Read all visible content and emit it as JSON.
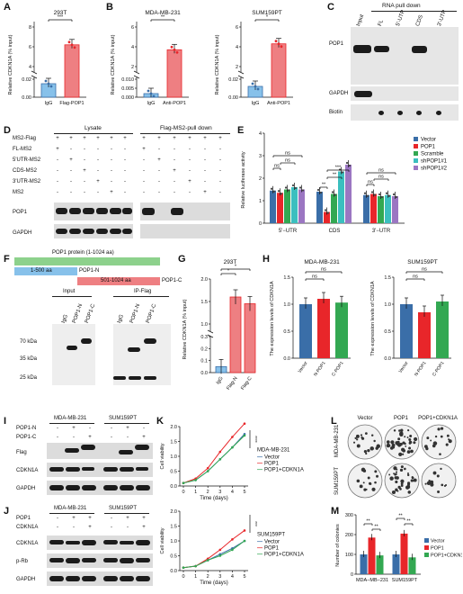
{
  "panels": {
    "A": {
      "letter": "A",
      "title": "293T",
      "ylabel": "Relative CDKN1A (% input)",
      "ticks_top": [
        "8",
        "6",
        "4"
      ],
      "ticks_bottom": [
        "0.02",
        "0.00"
      ],
      "categories": [
        "IgG",
        "Flag-POP1"
      ],
      "sig": "***"
    },
    "B1": {
      "letter": "B",
      "title": "MDA-MB-231",
      "ylabel": "Relative CDKN1A (% input)",
      "ticks_top": [
        "6",
        "4",
        "2"
      ],
      "ticks_bottom": [
        "0.010",
        "0.005",
        "0.000"
      ],
      "categories": [
        "IgG",
        "Anti-POP1"
      ],
      "sig": "**"
    },
    "B2": {
      "title": "SUM159PT",
      "ylabel": "Relative CDKN1A (% input)",
      "ticks_top": [
        "6",
        "4",
        "2"
      ],
      "ticks_bottom": [
        "0.02",
        "0.00"
      ],
      "categories": [
        "IgG",
        "Anti-POP1"
      ],
      "sig": "*"
    },
    "C": {
      "letter": "C",
      "header": "RNA pull down",
      "lanes": [
        "Input",
        "FL",
        "5'-UTR",
        "CDS",
        "3'-UTR"
      ],
      "rows": [
        "POP1",
        "GAPDH",
        "Biotin"
      ]
    },
    "D": {
      "letter": "D",
      "group1": "Lysate",
      "group2": "Flag-MS2-pull down",
      "rows": [
        {
          "label": "MS2-Flag",
          "marks": [
            "+",
            "+",
            "+",
            "+",
            "+",
            "+",
            "+",
            "+",
            "+",
            "+",
            "+",
            "+"
          ]
        },
        {
          "label": "FL-MS2",
          "marks": [
            "+",
            "-",
            "-",
            "-",
            "-",
            "-",
            "+",
            "-",
            "-",
            "-",
            "-",
            "-"
          ]
        },
        {
          "label": "5'UTR-MS2",
          "marks": [
            "-",
            "+",
            "-",
            "-",
            "-",
            "-",
            "-",
            "+",
            "-",
            "-",
            "-",
            "-"
          ]
        },
        {
          "label": "CDS-MS2",
          "marks": [
            "-",
            "-",
            "+",
            "-",
            "-",
            "-",
            "-",
            "-",
            "+",
            "-",
            "-",
            "-"
          ]
        },
        {
          "label": "3'UTR-MS2",
          "marks": [
            "-",
            "-",
            "-",
            "+",
            "-",
            "-",
            "-",
            "-",
            "-",
            "+",
            "-",
            "-"
          ]
        },
        {
          "label": "MS2",
          "marks": [
            "-",
            "-",
            "-",
            "-",
            "+",
            "-",
            "-",
            "-",
            "-",
            "-",
            "+",
            "-"
          ]
        }
      ],
      "blots": [
        "POP1",
        "GAPDH"
      ]
    },
    "E": {
      "letter": "E",
      "ylabel": "Relative luciferase activity",
      "ticks": [
        "4",
        "3",
        "2",
        "1",
        "0"
      ],
      "groups": [
        "5'−UTR",
        "CDS",
        "3'−UTR"
      ],
      "legend": [
        "Vector",
        "POP1",
        "Scramble",
        "shPOP1#1",
        "shPOP1#2"
      ],
      "sigs": [
        "ns",
        "ns",
        "ns",
        "**",
        "**",
        "***",
        "ns",
        "ns",
        "ns"
      ]
    },
    "F": {
      "letter": "F",
      "protein": "POP1 protein (1-1024 aa)",
      "fragN": "1-500 aa",
      "fragNlabel": "POP1-N",
      "fragC": "501-1024 aa",
      "fragClabel": "POP1-C",
      "blot1": "Input",
      "blot2": "IP-Flag",
      "lanes": [
        "IgG",
        "POP1-N",
        "POP1-C"
      ],
      "markers": [
        "70 kDa",
        "35 kDa",
        "25 kDa"
      ]
    },
    "G": {
      "letter": "G",
      "title": "293T",
      "ylabel": "Relative CDKN1A (% input)",
      "ticks_top": [
        "2.0",
        "1.5",
        "1.0"
      ],
      "ticks_bottom": [
        "0.3",
        "0.2",
        "0.1",
        "0.0"
      ],
      "categories": [
        "IgG",
        "Flag-N",
        "Flag-C"
      ],
      "sigs": [
        "*",
        "*"
      ]
    },
    "H": {
      "letter": "H",
      "ylabel": "The expression levels of CDKN1A",
      "ticks": [
        "1.5",
        "1.0",
        "0.5",
        "0.0"
      ],
      "left_title": "MDA-MB-231",
      "right_title": "SUM159PT",
      "categories": [
        "Vector",
        "N-POP1",
        "C-POP1"
      ],
      "sigs": [
        "ns",
        "ns",
        "ns"
      ]
    },
    "I": {
      "letter": "I",
      "cells": [
        "MDA-MB-231",
        "SUM159PT"
      ],
      "rows": [
        {
          "label": "POP1-N",
          "marks": [
            "-",
            "+",
            "-",
            "-",
            "+",
            "-"
          ]
        },
        {
          "label": "POP1-C",
          "marks": [
            "-",
            "-",
            "+",
            "-",
            "-",
            "+"
          ]
        }
      ],
      "blots": [
        "Flag",
        "CDKN1A",
        "GAPDH"
      ]
    },
    "J": {
      "letter": "J",
      "cells": [
        "MDA-MB-231",
        "SUM159PT"
      ],
      "rows": [
        {
          "label": "POP1",
          "marks": [
            "-",
            "+",
            "+",
            "-",
            "+",
            "+"
          ]
        },
        {
          "label": "CDKN1A",
          "marks": [
            "-",
            "-",
            "+",
            "-",
            "-",
            "+"
          ]
        }
      ],
      "blots": [
        "CDKN1A",
        "p-Rb",
        "GAPDH"
      ]
    },
    "K": {
      "letter": "K",
      "ylabel": "Cell viability",
      "xlabel": "Time (days)",
      "ticks_y": [
        "2.0",
        "1.5",
        "1.0",
        "0.5",
        "0.0"
      ],
      "ticks_x": [
        "0",
        "1",
        "2",
        "3",
        "4",
        "5"
      ],
      "top_title": "MDA-MB-231",
      "bottom_title": "SUM159PT",
      "legend": [
        "Vector",
        "POP1",
        "POP1+CDKN1A"
      ],
      "sigs": [
        "****",
        "***"
      ]
    },
    "L": {
      "letter": "L",
      "columns": [
        "Vector",
        "POP1",
        "POP1+CDKN1A"
      ],
      "rows": [
        "MDA-MB-231",
        "SUM159PT"
      ]
    },
    "M": {
      "letter": "M",
      "ylabel": "Number of colonies",
      "ticks": [
        "300",
        "200",
        "100",
        "0"
      ],
      "groups": [
        "MDA−MB−231",
        "SUM159PT"
      ],
      "legend": [
        "Vector",
        "POP1",
        "POP1+CDKN1A"
      ],
      "sigs": [
        "**",
        "**",
        "**",
        "**"
      ]
    }
  },
  "colors": {
    "blue": "#3a6ea8",
    "red": "#e8262a",
    "green": "#33a852",
    "teal": "#3bbfbf",
    "purple": "#9b76c2",
    "lightblue": "#87c1ea",
    "lightred": "#ee7f82",
    "lightgreen": "#8dd18c"
  },
  "chart_data": [
    {
      "type": "bar",
      "panel": "A",
      "title": "293T",
      "ylabel": "Relative CDKN1A (% input)",
      "categories": [
        "IgG",
        "Flag-POP1"
      ],
      "values": [
        0.015,
        6.2
      ]
    },
    {
      "type": "bar",
      "panel": "B",
      "title": "MDA-MB-231",
      "ylabel": "Relative CDKN1A (% input)",
      "categories": [
        "IgG",
        "Anti-POP1"
      ],
      "values": [
        0.002,
        3.7
      ]
    },
    {
      "type": "bar",
      "panel": "B",
      "title": "SUM159PT",
      "ylabel": "Relative CDKN1A (% input)",
      "categories": [
        "IgG",
        "Anti-POP1"
      ],
      "values": [
        0.012,
        4.3
      ]
    },
    {
      "type": "bar",
      "panel": "E",
      "ylabel": "Relative luciferase activity",
      "categories": [
        "5'−UTR",
        "CDS",
        "3'−UTR"
      ],
      "series": [
        {
          "name": "Vector",
          "values": [
            1.45,
            1.4,
            1.25
          ]
        },
        {
          "name": "POP1",
          "values": [
            1.35,
            0.5,
            1.3
          ]
        },
        {
          "name": "Scramble",
          "values": [
            1.5,
            1.3,
            1.2
          ]
        },
        {
          "name": "shPOP1#1",
          "values": [
            1.6,
            2.3,
            1.25
          ]
        },
        {
          "name": "shPOP1#2",
          "values": [
            1.5,
            2.6,
            1.2
          ]
        }
      ]
    },
    {
      "type": "bar",
      "panel": "G",
      "title": "293T",
      "ylabel": "Relative CDKN1A (% input)",
      "categories": [
        "IgG",
        "Flag-N",
        "Flag-C"
      ],
      "values": [
        0.05,
        1.6,
        1.45
      ]
    },
    {
      "type": "bar",
      "panel": "H",
      "title": "MDA-MB-231",
      "ylabel": "The expression levels of CDKN1A",
      "categories": [
        "Vector",
        "N-POP1",
        "C-POP1"
      ],
      "values": [
        1.0,
        1.1,
        1.03
      ]
    },
    {
      "type": "bar",
      "panel": "H",
      "title": "SUM159PT",
      "ylabel": "The expression levels of CDKN1A",
      "categories": [
        "Vector",
        "N-POP1",
        "C-POP1"
      ],
      "values": [
        1.0,
        0.85,
        1.05
      ]
    },
    {
      "type": "line",
      "panel": "K",
      "title": "MDA-MB-231",
      "xlabel": "Time (days)",
      "ylabel": "Cell viability",
      "x": [
        0,
        1,
        2,
        3,
        4,
        5
      ],
      "series": [
        {
          "name": "Vector",
          "values": [
            0.1,
            0.2,
            0.5,
            0.9,
            1.3,
            1.75
          ]
        },
        {
          "name": "POP1",
          "values": [
            0.1,
            0.25,
            0.6,
            1.15,
            1.65,
            2.1
          ]
        },
        {
          "name": "POP1+CDKN1A",
          "values": [
            0.1,
            0.2,
            0.5,
            0.9,
            1.3,
            1.7
          ]
        }
      ]
    },
    {
      "type": "line",
      "panel": "K",
      "title": "SUM159PT",
      "xlabel": "Time (days)",
      "ylabel": "Cell viability",
      "x": [
        0,
        1,
        2,
        3,
        4,
        5
      ],
      "series": [
        {
          "name": "Vector",
          "values": [
            0.1,
            0.15,
            0.35,
            0.55,
            0.75,
            1.0
          ]
        },
        {
          "name": "POP1",
          "values": [
            0.1,
            0.15,
            0.4,
            0.7,
            1.05,
            1.35
          ]
        },
        {
          "name": "POP1+CDKN1A",
          "values": [
            0.1,
            0.15,
            0.35,
            0.5,
            0.7,
            1.0
          ]
        }
      ]
    },
    {
      "type": "bar",
      "panel": "M",
      "ylabel": "Number of colonies",
      "categories": [
        "MDA−MB−231",
        "SUM159PT"
      ],
      "series": [
        {
          "name": "Vector",
          "values": [
            100,
            100
          ]
        },
        {
          "name": "POP1",
          "values": [
            185,
            205
          ]
        },
        {
          "name": "POP1+CDKN1A",
          "values": [
            95,
            85
          ]
        }
      ]
    }
  ]
}
